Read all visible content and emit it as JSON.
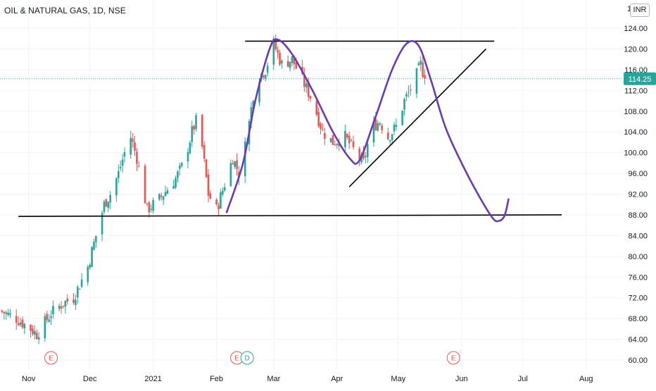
{
  "header": {
    "symbol": "OIL & NATURAL GAS, 1D, NSE",
    "currency": "INR"
  },
  "price_label": "114.25",
  "colors": {
    "up": "#26a69a",
    "down": "#ef5350",
    "price_line": "#26a69a",
    "drawing_line": "#000000",
    "drawing_curve": "#673ab7",
    "event": "#ef5350",
    "grid": "#f0f3fa",
    "text": "#131722"
  },
  "events": [
    {
      "label": "E",
      "date": "2020-11-12"
    },
    {
      "label": "E",
      "date": "2021-02-11"
    },
    {
      "label": "D",
      "date": "2021-02-16"
    },
    {
      "label": "E",
      "date": "2021-05-28"
    }
  ],
  "chart_data": {
    "type": "candlestick",
    "title": "OIL & NATURAL GAS, 1D, NSE",
    "currency": "INR",
    "last_price": 114.25,
    "ylim": [
      58,
      128
    ],
    "yticks": [
      60,
      64,
      68,
      72,
      76,
      80,
      84,
      88,
      92,
      96,
      100,
      104,
      108,
      112,
      116,
      120,
      124
    ],
    "ytick_labels": [
      "60.00",
      "64.00",
      "68.00",
      "72.00",
      "76.00",
      "80.00",
      "84.00",
      "88.00",
      "92.00",
      "96.00",
      "100.00",
      "104.00",
      "108.00",
      "112.00",
      "116.00",
      "120.00",
      "124.00"
    ],
    "top_partial_tick": "1",
    "xlim": [
      "2020-10-18",
      "2021-08-19"
    ],
    "xticks": [
      {
        "date": "2020-11-01",
        "label": "Nov"
      },
      {
        "date": "2020-12-01",
        "label": "Dec"
      },
      {
        "date": "2021-01-01",
        "label": "2021"
      },
      {
        "date": "2021-02-01",
        "label": "Feb"
      },
      {
        "date": "2021-03-01",
        "label": "Mar"
      },
      {
        "date": "2021-04-01",
        "label": "Apr"
      },
      {
        "date": "2021-05-01",
        "label": "May"
      },
      {
        "date": "2021-06-01",
        "label": "Jun"
      },
      {
        "date": "2021-07-01",
        "label": "Jul"
      },
      {
        "date": "2021-08-01",
        "label": "Aug"
      }
    ],
    "grid": true,
    "anchors": [
      [
        "2020-10-18",
        69.5
      ],
      [
        "2020-10-26",
        68
      ],
      [
        "2020-11-02",
        66
      ],
      [
        "2020-11-05",
        65
      ],
      [
        "2020-11-12",
        69
      ],
      [
        "2020-11-18",
        71
      ],
      [
        "2020-11-23",
        72
      ],
      [
        "2020-11-30",
        78
      ],
      [
        "2020-12-04",
        84
      ],
      [
        "2020-12-08",
        90
      ],
      [
        "2020-12-11",
        92
      ],
      [
        "2020-12-15",
        96
      ],
      [
        "2020-12-18",
        100
      ],
      [
        "2020-12-21",
        103
      ],
      [
        "2020-12-24",
        99
      ],
      [
        "2020-12-29",
        89
      ],
      [
        "2021-01-04",
        91
      ],
      [
        "2021-01-08",
        93
      ],
      [
        "2021-01-12",
        95
      ],
      [
        "2021-01-16",
        98
      ],
      [
        "2021-01-20",
        104
      ],
      [
        "2021-01-22",
        106
      ],
      [
        "2021-01-25",
        101
      ],
      [
        "2021-01-28",
        92
      ],
      [
        "2021-02-01",
        89
      ],
      [
        "2021-02-05",
        94
      ],
      [
        "2021-02-09",
        99
      ],
      [
        "2021-02-12",
        96
      ],
      [
        "2021-02-16",
        103
      ],
      [
        "2021-02-20",
        114
      ],
      [
        "2021-02-25",
        116
      ],
      [
        "2021-03-01",
        121
      ],
      [
        "2021-03-05",
        117
      ],
      [
        "2021-03-10",
        118
      ],
      [
        "2021-03-15",
        114
      ],
      [
        "2021-03-20",
        110
      ],
      [
        "2021-03-25",
        104
      ],
      [
        "2021-03-30",
        102
      ],
      [
        "2021-04-05",
        103
      ],
      [
        "2021-04-10",
        100
      ],
      [
        "2021-04-14",
        98
      ],
      [
        "2021-04-18",
        105
      ],
      [
        "2021-04-22",
        106
      ],
      [
        "2021-04-26",
        103
      ],
      [
        "2021-04-30",
        105
      ],
      [
        "2021-05-04",
        110
      ],
      [
        "2021-05-08",
        113
      ],
      [
        "2021-05-12",
        117
      ],
      [
        "2021-05-14",
        114.25
      ]
    ],
    "series": [
      {
        "kind": "candles",
        "interpolate": "anchors",
        "note_drawn": true
      }
    ],
    "drawings": {
      "lines": [
        {
          "from": [
            "2020-10-27",
            87.7
          ],
          "to": [
            "2021-07-20",
            88.0
          ]
        },
        {
          "from": [
            "2021-02-15",
            121.5
          ],
          "to": [
            "2021-06-17",
            121.5
          ]
        },
        {
          "from": [
            "2021-04-07",
            93.4
          ],
          "to": [
            "2021-06-13",
            120.0
          ]
        }
      ],
      "curve": [
        [
          "2021-02-06",
          88.5
        ],
        [
          "2021-02-14",
          98
        ],
        [
          "2021-02-20",
          110
        ],
        [
          "2021-02-27",
          120
        ],
        [
          "2021-03-03",
          121.8
        ],
        [
          "2021-03-10",
          119
        ],
        [
          "2021-03-20",
          112
        ],
        [
          "2021-03-30",
          104
        ],
        [
          "2021-04-07",
          99
        ],
        [
          "2021-04-12",
          98.5
        ],
        [
          "2021-04-20",
          107
        ],
        [
          "2021-04-28",
          116
        ],
        [
          "2021-05-05",
          121
        ],
        [
          "2021-05-11",
          120.6
        ],
        [
          "2021-05-17",
          114
        ],
        [
          "2021-05-24",
          105
        ],
        [
          "2021-06-01",
          98
        ],
        [
          "2021-06-09",
          92
        ],
        [
          "2021-06-16",
          87.5
        ],
        [
          "2021-06-19",
          86.8
        ],
        [
          "2021-06-22",
          87.8
        ],
        [
          "2021-06-24",
          91
        ]
      ]
    }
  }
}
